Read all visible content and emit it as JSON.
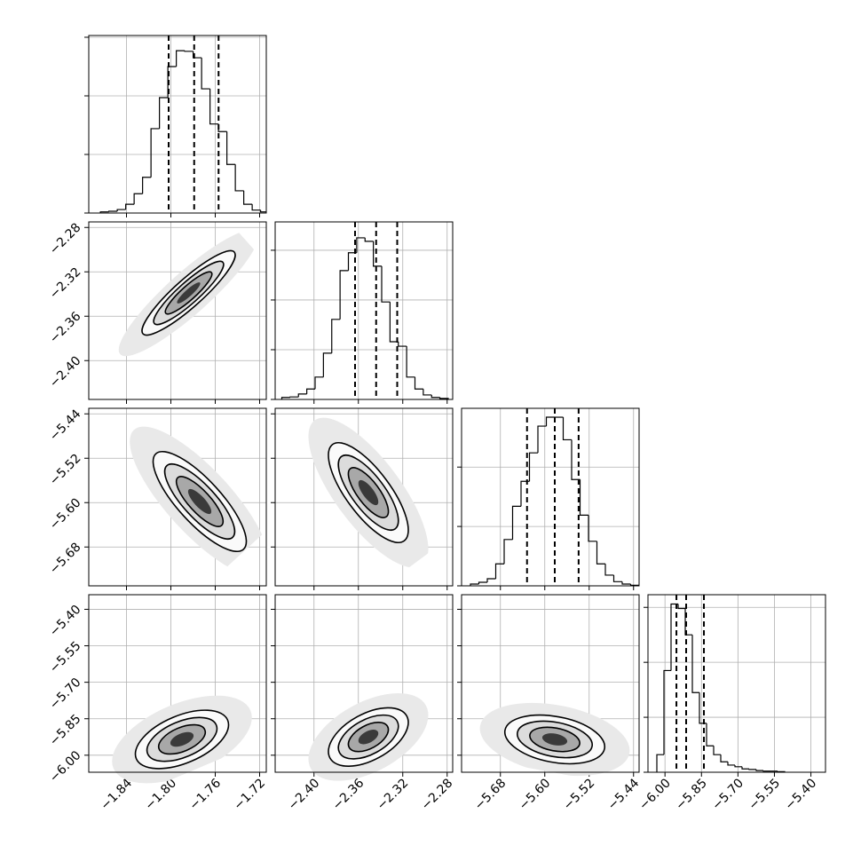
{
  "chart_data": {
    "type": "corner",
    "grid": true,
    "line_color": "#000000",
    "grid_color": "#b0b0b0",
    "params": [
      {
        "lim": [
          -1.874,
          -1.714
        ],
        "ticks": [
          {
            "value": -1.84,
            "label": "−1.84"
          },
          {
            "value": -1.8,
            "label": "−1.80"
          },
          {
            "value": -1.76,
            "label": "−1.76"
          },
          {
            "value": -1.72,
            "label": "−1.72"
          }
        ]
      },
      {
        "lim": [
          -2.435,
          -2.275
        ],
        "ticks": [
          {
            "value": -2.4,
            "label": "−2.40"
          },
          {
            "value": -2.36,
            "label": "−2.36"
          },
          {
            "value": -2.32,
            "label": "−2.32"
          },
          {
            "value": -2.28,
            "label": "−2.28"
          }
        ]
      },
      {
        "lim": [
          -5.75,
          -5.43
        ],
        "ticks": [
          {
            "value": -5.68,
            "label": "−5.68"
          },
          {
            "value": -5.6,
            "label": "−5.60"
          },
          {
            "value": -5.52,
            "label": "−5.52"
          },
          {
            "value": -5.44,
            "label": "−5.44"
          }
        ]
      },
      {
        "lim": [
          -6.07,
          -5.34
        ],
        "ticks": [
          {
            "value": -6.0,
            "label": "−6.00"
          },
          {
            "value": -5.85,
            "label": "−5.85"
          },
          {
            "value": -5.7,
            "label": "−5.70"
          },
          {
            "value": -5.55,
            "label": "−5.55"
          },
          {
            "value": -5.4,
            "label": "−5.40"
          }
        ]
      }
    ],
    "histograms": [
      {
        "bins": [
          -1.8635,
          -1.8559,
          -1.8483,
          -1.8407,
          -1.8331,
          -1.8255,
          -1.8179,
          -1.8103,
          -1.8027,
          -1.7951,
          -1.7875,
          -1.7799,
          -1.7723,
          -1.7647,
          -1.7571,
          -1.7495,
          -1.7419,
          -1.7343,
          -1.7267,
          -1.7191,
          -1.7115
        ],
        "values": [
          0.02,
          0.03,
          0.06,
          0.15,
          0.33,
          0.61,
          1.44,
          1.97,
          2.5,
          2.77,
          2.76,
          2.65,
          2.12,
          1.52,
          1.39,
          0.83,
          0.38,
          0.15,
          0.05,
          0.02
        ],
        "ylim": [
          0,
          3.03
        ],
        "yticks": [
          0,
          1,
          2,
          3
        ],
        "quantiles": [
          -1.802,
          -1.779,
          -1.757
        ]
      },
      {
        "bins": [
          -2.429,
          -2.4215,
          -2.414,
          -2.4065,
          -2.399,
          -2.3915,
          -2.384,
          -2.3765,
          -2.369,
          -2.3615,
          -2.354,
          -2.3465,
          -2.339,
          -2.3315,
          -2.324,
          -2.3165,
          -2.309,
          -2.3015,
          -2.294,
          -2.2865,
          -2.279
        ],
        "values": [
          0.04,
          0.05,
          0.11,
          0.21,
          0.45,
          0.93,
          1.61,
          2.59,
          2.95,
          3.25,
          3.18,
          2.68,
          1.96,
          1.16,
          1.07,
          0.45,
          0.21,
          0.09,
          0.04,
          0.02
        ],
        "ylim": [
          0,
          3.57
        ],
        "yticks": [
          0,
          1,
          2,
          3
        ],
        "quantiles": [
          -2.363,
          -2.344,
          -2.325
        ]
      },
      {
        "bins": [
          -5.734,
          -5.7188,
          -5.7036,
          -5.6884,
          -5.6732,
          -5.658,
          -5.6428,
          -5.6276,
          -5.6124,
          -5.5972,
          -5.582,
          -5.5668,
          -5.5516,
          -5.5364,
          -5.5212,
          -5.506,
          -5.4908,
          -5.4756,
          -5.4604,
          -5.4452,
          -5.43
        ],
        "values": [
          0.03,
          0.06,
          0.12,
          0.37,
          0.78,
          1.34,
          1.76,
          2.24,
          2.69,
          2.84,
          2.84,
          2.46,
          1.79,
          1.19,
          0.75,
          0.37,
          0.18,
          0.07,
          0.03,
          0.01
        ],
        "ylim": [
          0,
          2.99
        ],
        "yticks": [
          0,
          1,
          2
        ],
        "quantiles": [
          -5.632,
          -5.582,
          -5.539
        ]
      },
      {
        "bins": [
          -6.0335,
          -6.0043,
          -5.9751,
          -5.9459,
          -5.9167,
          -5.8875,
          -5.8583,
          -5.8291,
          -5.7999,
          -5.7707,
          -5.7415,
          -5.7123,
          -5.6831,
          -5.6539,
          -5.6247,
          -5.5955,
          -5.5663,
          -5.5371,
          -5.5079
        ],
        "values": [
          0.32,
          1.85,
          3.06,
          2.98,
          2.5,
          1.45,
          0.89,
          0.48,
          0.32,
          0.19,
          0.13,
          0.1,
          0.06,
          0.05,
          0.03,
          0.02,
          0.02,
          0.01
        ],
        "ylim": [
          0,
          3.23
        ],
        "yticks": [
          0,
          1,
          2,
          3
        ],
        "quantiles": [
          -5.953,
          -5.913,
          -5.84
        ]
      }
    ],
    "pairs": [
      {
        "x": 0,
        "y": 1,
        "mean": [
          -1.784,
          -2.339
        ],
        "sd": [
          0.021,
          0.019
        ],
        "corr": 0.9
      },
      {
        "x": 0,
        "y": 2,
        "mean": [
          -1.774,
          -5.598
        ],
        "sd": [
          0.021,
          0.045
        ],
        "corr": -0.8
      },
      {
        "x": 1,
        "y": 2,
        "mean": [
          -2.351,
          -5.582
        ],
        "sd": [
          0.018,
          0.045
        ],
        "corr": -0.75
      },
      {
        "x": 0,
        "y": 3,
        "mean": [
          -1.79,
          -5.935
        ],
        "sd": [
          0.021,
          0.06
        ],
        "corr": 0.5
      },
      {
        "x": 1,
        "y": 3,
        "mean": [
          -2.351,
          -5.925
        ],
        "sd": [
          0.018,
          0.06
        ],
        "corr": 0.5
      },
      {
        "x": 2,
        "y": 3,
        "mean": [
          -5.582,
          -5.935
        ],
        "sd": [
          0.045,
          0.05
        ],
        "corr": -0.3
      }
    ],
    "levels": [
      {
        "sigma": 3,
        "fill": "#e9e9e9",
        "stroke": "none"
      },
      {
        "sigma": 2,
        "fill": "#fafafa",
        "stroke": "#000000"
      },
      {
        "sigma": 1.5,
        "fill": "#dcdcdc",
        "stroke": "#000000"
      },
      {
        "sigma": 1,
        "fill": "#a8a8a8",
        "stroke": "#000000"
      },
      {
        "sigma": 0.5,
        "fill": "#3a3a3a",
        "stroke": "none"
      }
    ]
  }
}
